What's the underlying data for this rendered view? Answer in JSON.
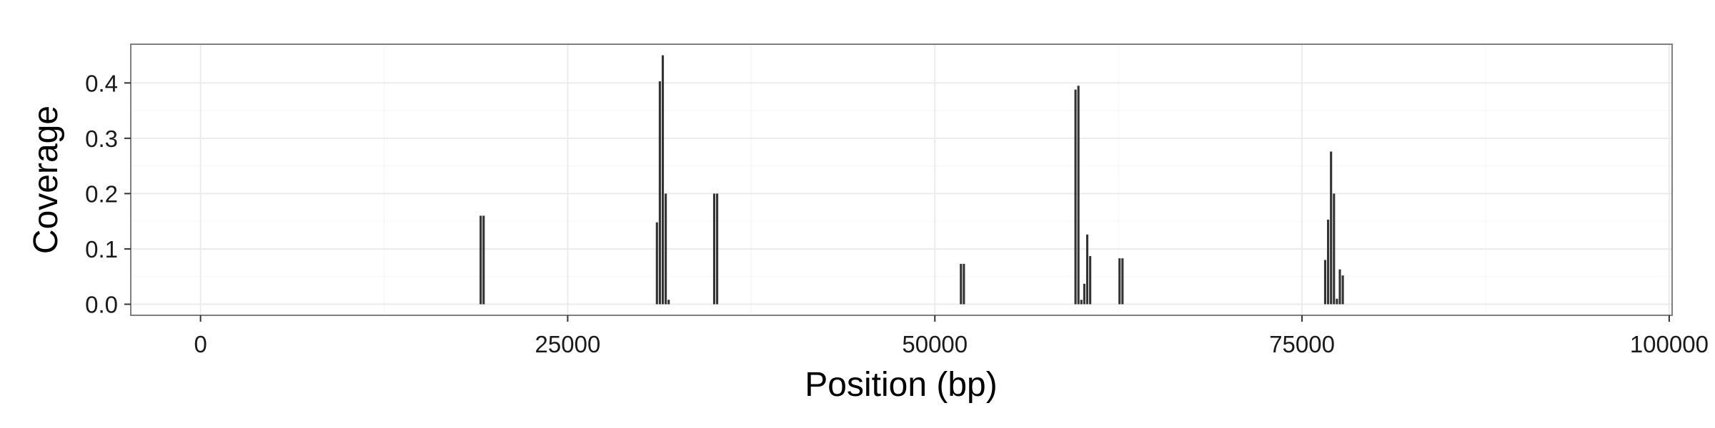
{
  "chart_data": {
    "type": "bar",
    "title": "",
    "xlabel": "Position (bp)",
    "ylabel": "Coverage",
    "xlim": [
      -4750,
      100200
    ],
    "ylim": [
      -0.02,
      0.47
    ],
    "x_ticks": [
      0,
      25000,
      50000,
      75000,
      100000
    ],
    "x_tick_labels": [
      "0",
      "25000",
      "50000",
      "75000",
      "100000"
    ],
    "y_ticks": [
      0.0,
      0.1,
      0.2,
      0.3,
      0.4
    ],
    "y_tick_labels": [
      "0.0",
      "0.1",
      "0.2",
      "0.3",
      "0.4"
    ],
    "grid": true,
    "bar_width_bp": 200,
    "bar_color": "#333333",
    "panel_background": "#ffffff",
    "grid_color": "#ebebeb",
    "points": [
      {
        "x": 19100,
        "y": 0.16
      },
      {
        "x": 19300,
        "y": 0.16
      },
      {
        "x": 31100,
        "y": 0.148
      },
      {
        "x": 31300,
        "y": 0.403
      },
      {
        "x": 31500,
        "y": 0.45
      },
      {
        "x": 31700,
        "y": 0.2
      },
      {
        "x": 31900,
        "y": 0.008
      },
      {
        "x": 35000,
        "y": 0.2
      },
      {
        "x": 35200,
        "y": 0.2
      },
      {
        "x": 51800,
        "y": 0.073
      },
      {
        "x": 52000,
        "y": 0.073
      },
      {
        "x": 59600,
        "y": 0.388
      },
      {
        "x": 59800,
        "y": 0.395
      },
      {
        "x": 60000,
        "y": 0.008
      },
      {
        "x": 60200,
        "y": 0.037
      },
      {
        "x": 60400,
        "y": 0.126
      },
      {
        "x": 60600,
        "y": 0.087
      },
      {
        "x": 62600,
        "y": 0.083
      },
      {
        "x": 62800,
        "y": 0.083
      },
      {
        "x": 76600,
        "y": 0.08
      },
      {
        "x": 76800,
        "y": 0.153
      },
      {
        "x": 77000,
        "y": 0.276
      },
      {
        "x": 77200,
        "y": 0.2
      },
      {
        "x": 77400,
        "y": 0.01
      },
      {
        "x": 77600,
        "y": 0.063
      },
      {
        "x": 77800,
        "y": 0.052
      }
    ]
  }
}
